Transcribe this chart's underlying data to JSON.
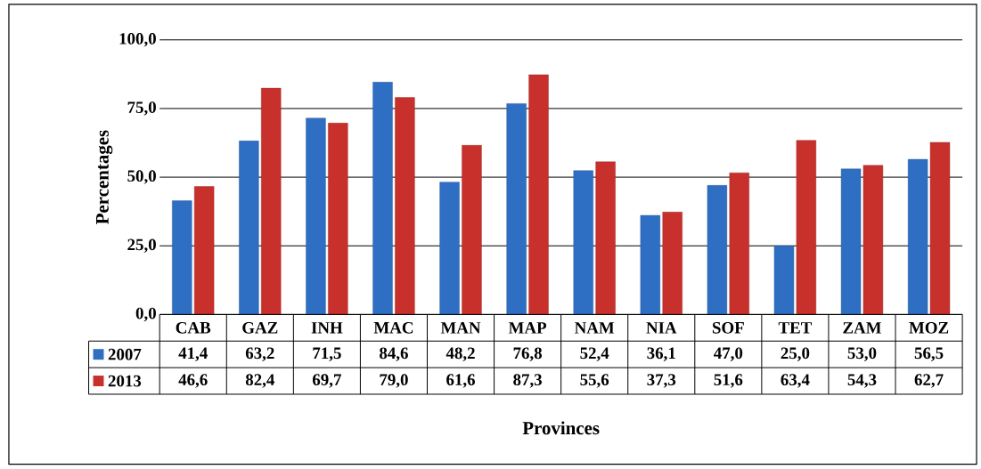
{
  "chart_data": {
    "type": "bar",
    "xlabel": "Provinces",
    "ylabel": "Percentages",
    "categories": [
      "CAB",
      "GAZ",
      "INH",
      "MAC",
      "MAN",
      "MAP",
      "NAM",
      "NIA",
      "SOF",
      "TET",
      "ZAM",
      "MOZ"
    ],
    "series": [
      {
        "name": "2007",
        "color": "#2e6fc4",
        "values": [
          41.4,
          63.2,
          71.5,
          84.6,
          48.2,
          76.8,
          52.4,
          36.1,
          47.0,
          25.0,
          53.0,
          56.5
        ],
        "value_labels": [
          "41,4",
          "63,2",
          "71,5",
          "84,6",
          "48,2",
          "76,8",
          "52,4",
          "36,1",
          "47,0",
          "25,0",
          "53,0",
          "56,5"
        ]
      },
      {
        "name": "2013",
        "color": "#c8302c",
        "values": [
          46.6,
          82.4,
          69.7,
          79.0,
          61.6,
          87.3,
          55.6,
          37.3,
          51.6,
          63.4,
          54.3,
          62.7
        ],
        "value_labels": [
          "46,6",
          "82,4",
          "69,7",
          "79,0",
          "61,6",
          "87,3",
          "55,6",
          "37,3",
          "51,6",
          "63,4",
          "54,3",
          "62,7"
        ]
      }
    ],
    "ylim": [
      0,
      100
    ],
    "yticks": [
      {
        "value": 0,
        "label": "0,0"
      },
      {
        "value": 25,
        "label": "25,0"
      },
      {
        "value": 50,
        "label": "50,0"
      },
      {
        "value": 75,
        "label": "75,0"
      },
      {
        "value": 100,
        "label": "100,0"
      }
    ],
    "grid": "y",
    "legend": "bottom left"
  }
}
